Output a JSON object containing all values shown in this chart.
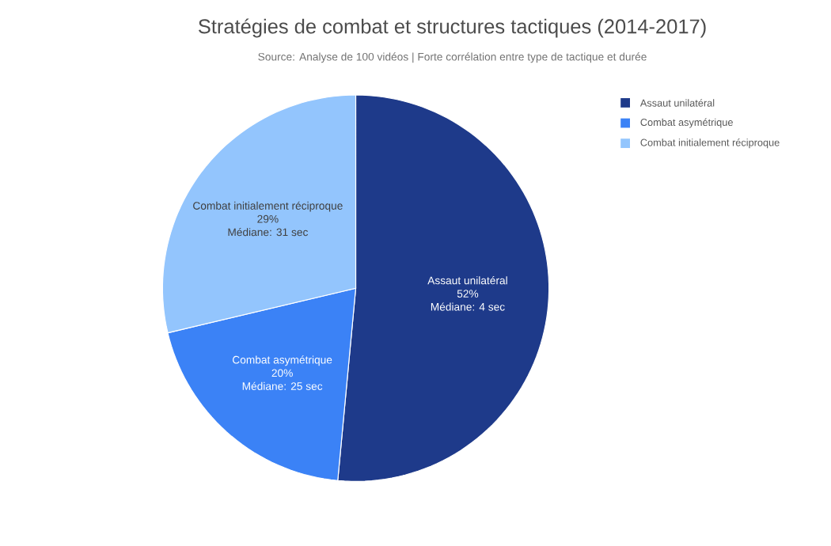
{
  "chart_data": {
    "type": "pie",
    "title": "Stratégies de combat et structures tactiques (2014-2017)",
    "subtitle": "Source: Analyse de 100 vidéos | Forte corrélation entre type de tactique et durée",
    "categories": [
      "Assaut unilatéral",
      "Combat asymétrique",
      "Combat initialement réciproque"
    ],
    "values": [
      52,
      20,
      29
    ],
    "colors": [
      "#1e3a8a",
      "#3b82f6",
      "#93c5fd"
    ],
    "value_labels": [
      "52%",
      "20%",
      "29%"
    ],
    "annotations": [
      "Médiane: 4 sec",
      "Médiane: 25 sec",
      "Médiane: 31 sec"
    ],
    "legend": "top right"
  }
}
